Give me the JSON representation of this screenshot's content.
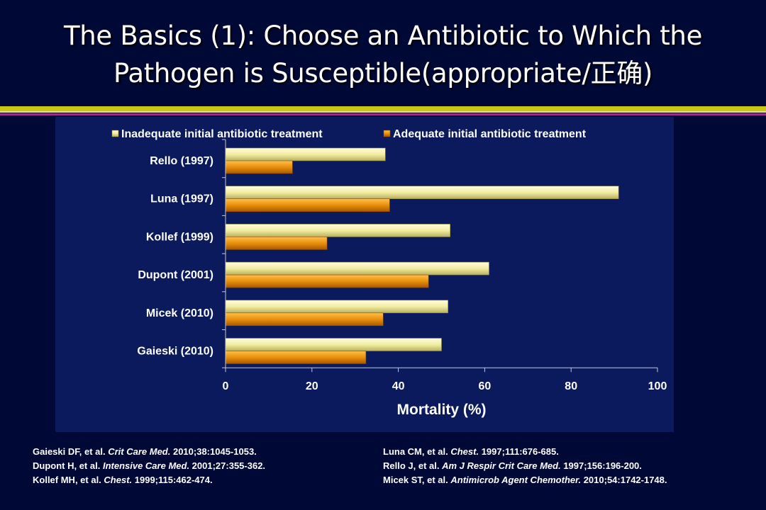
{
  "slide": {
    "title_line1": "The Basics (1): Choose an Antibiotic to Which the",
    "title_line2": "Pathogen is Susceptible(appropriate/正确)"
  },
  "colors": {
    "background": "#000836",
    "chart_panel": "#0a1a5c",
    "band_yellow": "#c9c61a",
    "band_purple": "#9a2e8c",
    "series_inadequate": "#f2eda0",
    "series_adequate": "#e8900c"
  },
  "chart_data": {
    "type": "bar",
    "orientation": "horizontal",
    "categories": [
      "Rello (1997)",
      "Luna (1997)",
      "Kollef (1999)",
      "Dupont (2001)",
      "Micek (2010)",
      "Gaieski (2010)"
    ],
    "series": [
      {
        "name": "Inadequate initial antibiotic treatment",
        "color": "#f2eda0",
        "values": [
          37,
          91,
          52,
          61,
          51.5,
          50
        ]
      },
      {
        "name": "Adequate initial antibiotic treatment",
        "color": "#e8900c",
        "values": [
          15.5,
          38,
          23.5,
          47,
          36.5,
          32.5
        ]
      }
    ],
    "xlabel": "Mortality (%)",
    "ylabel": "",
    "xlim": [
      0,
      100
    ],
    "xticks": [
      "0",
      "20",
      "40",
      "60",
      "80",
      "100"
    ],
    "grid": false,
    "legend_position": "top"
  },
  "references": {
    "left": [
      {
        "authors": "Gaieski DF, et al. ",
        "journal": "Crit Care Med.",
        "details": " 2010;38:1045-1053."
      },
      {
        "authors": "Dupont H, et al. ",
        "journal": "Intensive Care Med.",
        "details": " 2001;27:355-362."
      },
      {
        "authors": "Kollef MH, et al. ",
        "journal": "Chest.",
        "details": " 1999;115:462-474."
      }
    ],
    "right": [
      {
        "authors": "Luna CM, et al. ",
        "journal": "Chest.",
        "details": " 1997;111:676-685."
      },
      {
        "authors": "Rello J, et al. ",
        "journal": "Am J Respir Crit Care Med.",
        "details": " 1997;156:196-200."
      },
      {
        "authors": "Micek ST, et al. ",
        "journal": "Antimicrob Agent Chemother.",
        "details": " 2010;54:1742-1748."
      }
    ]
  }
}
